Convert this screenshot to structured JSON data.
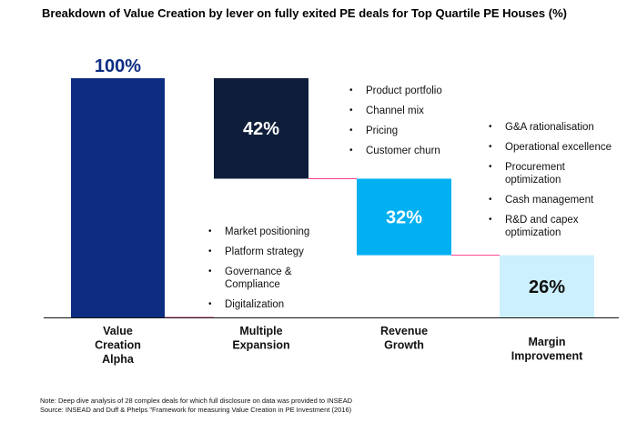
{
  "title": "Breakdown of Value Creation by lever on fully exited PE deals for Top Quartile PE Houses (%)",
  "colors": {
    "value_creation_alpha": "#0d2d82",
    "multiple_expansion": "#0e1e3a",
    "revenue_growth": "#00b0f0",
    "margin_improvement": "#ccf0fd",
    "bridge_connector": "#ff3b8a"
  },
  "chart_data": {
    "type": "waterfall",
    "title": "Breakdown of Value Creation by lever on fully exited PE deals for Top Quartile PE Houses (%)",
    "ylim": [
      0,
      100
    ],
    "unit": "%",
    "categories": [
      "Value Creation Alpha",
      "Multiple Expansion",
      "Revenue Growth",
      "Margin Improvement"
    ],
    "bars": [
      {
        "key": "value_creation_alpha",
        "category": "Value Creation Alpha",
        "category_lines": [
          "Value",
          "Creation",
          "Alpha"
        ],
        "value": 100,
        "base": 0,
        "label": "100%",
        "label_position": "above"
      },
      {
        "key": "multiple_expansion",
        "category": "Multiple Expansion",
        "category_lines": [
          "Multiple",
          "Expansion"
        ],
        "value": 42,
        "base": 58,
        "label": "42%",
        "label_position": "inside"
      },
      {
        "key": "revenue_growth",
        "category": "Revenue Growth",
        "category_lines": [
          "Revenue",
          "Growth"
        ],
        "value": 32,
        "base": 26,
        "label": "32%",
        "label_position": "inside"
      },
      {
        "key": "margin_improvement",
        "category": "Margin Improvement",
        "category_lines": [
          "Margin",
          "Improvement"
        ],
        "value": 26,
        "base": 0,
        "label": "26%",
        "label_position": "inside"
      }
    ],
    "annotations": [
      {
        "bar": "multiple_expansion",
        "items": [
          "Market positioning",
          "Platform strategy",
          "Governance & Compliance",
          "Digitalization"
        ]
      },
      {
        "bar": "revenue_growth",
        "items": [
          "Product portfolio",
          "Channel mix",
          "Pricing",
          "Customer churn"
        ]
      },
      {
        "bar": "margin_improvement",
        "items": [
          "G&A rationalisation",
          "Operational excellence",
          "Procurement optimization",
          "Cash management",
          "R&D and capex optimization"
        ]
      }
    ]
  },
  "footnotes": {
    "note": "Note: Deep dive analysis of 28 complex deals for which full disclosure on data was provided to INSEAD",
    "source": "Source: INSEAD and Duff & Phelps \"Framework for measuring Value Creation in PE Investment (2016)"
  }
}
